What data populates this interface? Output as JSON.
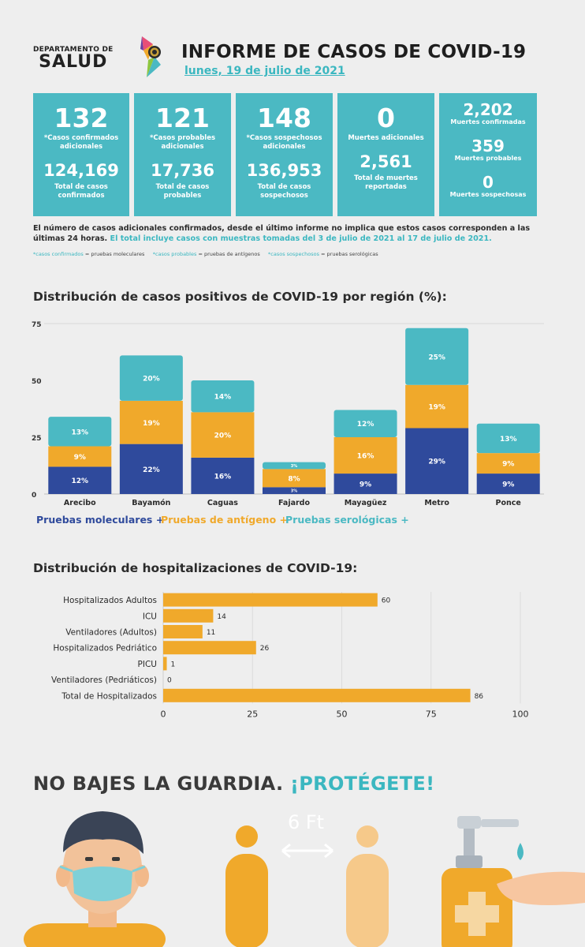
{
  "header": {
    "dept_line1": "DEPARTAMENTO DE",
    "dept_line2": "SALUD",
    "title": "INFORME DE CASOS DE COVID-19",
    "date": "lunes, 19 de julio de 2021"
  },
  "cards": [
    {
      "big": "132",
      "big_label": "*Casos confirmados adicionales",
      "total": "124,169",
      "total_label": "Total de casos confirmados"
    },
    {
      "big": "121",
      "big_label": "*Casos probables adicionales",
      "total": "17,736",
      "total_label": "Total de casos probables"
    },
    {
      "big": "148",
      "big_label": "*Casos sospechosos adicionales",
      "total": "136,953",
      "total_label": "Total de casos sospechosos"
    },
    {
      "big": "0",
      "big_label": "Muertes adicionales",
      "total": "2,561",
      "total_label": "Total de muertes reportadas"
    }
  ],
  "deaths": [
    {
      "value": "2,202",
      "label": "Muertes confirmadas"
    },
    {
      "value": "359",
      "label": "Muertes probables"
    },
    {
      "value": "0",
      "label": "Muertes sospechosas"
    }
  ],
  "note": {
    "text": "El número de casos adicionales confirmados, desde el último informe no implica que estos casos corresponden a las últimas 24 horas.",
    "highlight": "El total incluye casos con muestras tomadas del 3 de julio de 2021 al 17 de julio de 2021."
  },
  "legend_note": {
    "k1": "*casos confirmados",
    "v1": "= pruebas moleculares",
    "k2": "*casos probables",
    "v2": "= pruebas de antígenos",
    "k3": "*casos sospechosos",
    "v3": "= pruebas serológicas"
  },
  "colors": {
    "molecular": "#2f4a9c",
    "antigen": "#f0a92b",
    "serology": "#4bb9c3",
    "hosp_bar": "#f0a92b"
  },
  "chart_data": [
    {
      "type": "bar",
      "stacked": true,
      "title": "Distribución de casos positivos de COVID-19 por región (%):",
      "categories": [
        "Arecibo",
        "Bayamón",
        "Caguas",
        "Fajardo",
        "Mayagüez",
        "Metro",
        "Ponce"
      ],
      "series": [
        {
          "name": "Pruebas moleculares +",
          "values": [
            12,
            22,
            16,
            3,
            9,
            29,
            9
          ]
        },
        {
          "name": "Pruebas de antígeno +",
          "values": [
            9,
            19,
            20,
            8,
            16,
            19,
            9
          ]
        },
        {
          "name": "Pruebas serológicas +",
          "values": [
            13,
            20,
            14,
            3,
            12,
            25,
            13
          ]
        }
      ],
      "ylim": [
        0,
        75
      ],
      "yticks": [
        0,
        25,
        50,
        75
      ],
      "grid": false
    },
    {
      "type": "bar",
      "orientation": "horizontal",
      "title": "Distribución de hospitalizaciones de COVID-19:",
      "categories": [
        "Hospitalizados Adultos",
        "ICU",
        "Ventiladores (Adultos)",
        "Hospitalizados Pedriático",
        "PICU",
        "Ventiladores (Pedriáticos)",
        "Total de Hospitalizados"
      ],
      "values": [
        60,
        14,
        11,
        26,
        1,
        0,
        86
      ],
      "xlim": [
        0,
        100
      ],
      "xticks": [
        0,
        25,
        50,
        75,
        100
      ],
      "grid": true
    }
  ],
  "slogan": {
    "part1": "NO BAJES LA GUARDIA.",
    "part2": "¡PROTÉGETE!"
  },
  "illustration": {
    "distance_label": "6 Ft"
  }
}
